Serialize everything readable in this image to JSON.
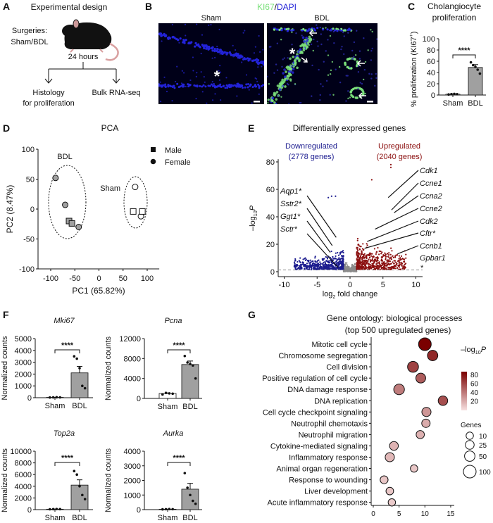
{
  "panel_letters": [
    "A",
    "B",
    "C",
    "D",
    "E",
    "F",
    "G"
  ],
  "experimental_design": {
    "title": "Experimental design",
    "surgeries": "Surgeries:",
    "groups": "Sham/BDL",
    "duration": "24 hours",
    "outcome_left_1": "Histology",
    "outcome_left_2": "for proliferation",
    "outcome_right": "Bulk RNA-seq"
  },
  "microscopy": {
    "stain_ki67": "KI67",
    "stain_sep": "/",
    "stain_dapi": "DAPI",
    "left_label": "Sham",
    "right_label": "BDL",
    "asterisk": "*",
    "colors": {
      "background": "#000018",
      "dapi": "#2323d8",
      "ki67": "#7be07b"
    }
  },
  "chart_data": [
    {
      "type": "bar",
      "title_lines": [
        "Cholangiocyte",
        "proliferation"
      ],
      "ylabel": "% proliferation (KI67",
      "ylabel_sup": "+",
      "ylabel_end": ")",
      "categories": [
        "Sham",
        "BDL"
      ],
      "values": [
        1.5,
        49
      ],
      "errors": [
        0.5,
        5
      ],
      "points": [
        [
          1,
          1.5,
          2,
          1.5
        ],
        [
          58,
          53,
          50,
          45,
          38
        ]
      ],
      "ylim": [
        0,
        100
      ],
      "yticks": [
        "0",
        "20",
        "40",
        "60",
        "80",
        "100"
      ],
      "significance": "****",
      "colors": [
        "#ffffff",
        "#a0a0a0"
      ]
    },
    {
      "type": "scatter",
      "title": "PCA",
      "xlabel": "PC1 (65.82%)",
      "ylabel": "PC2 (8.47%)",
      "xlim": [
        -125,
        125
      ],
      "ylim": [
        -100,
        100
      ],
      "xticks": [
        "-100",
        "-50",
        "0",
        "50",
        "100"
      ],
      "yticks": [
        "-100",
        "-50",
        "0",
        "50",
        "100"
      ],
      "legend": [
        {
          "label": "Male",
          "marker": "square"
        },
        {
          "label": "Female",
          "marker": "circle"
        }
      ],
      "legend_position": "top-right",
      "groups": [
        {
          "name": "BDL",
          "color": "#a0a0a0",
          "points": [
            {
              "x": -90,
              "y": 52,
              "sex": "Female"
            },
            {
              "x": -70,
              "y": 7,
              "sex": "Female"
            },
            {
              "x": -42,
              "y": -30,
              "sex": "Female"
            },
            {
              "x": -62,
              "y": -20,
              "sex": "Male"
            },
            {
              "x": -56,
              "y": -24,
              "sex": "Male"
            }
          ]
        },
        {
          "name": "Sham",
          "color": "#ffffff",
          "points": [
            {
              "x": 75,
              "y": 37,
              "sex": "Female"
            },
            {
              "x": 87,
              "y": -12,
              "sex": "Female"
            },
            {
              "x": 71,
              "y": -4,
              "sex": "Male"
            },
            {
              "x": 90,
              "y": -4,
              "sex": "Male"
            }
          ]
        }
      ]
    },
    {
      "type": "scatter",
      "title": "Differentially expressed genes",
      "xlabel_pre": "log",
      "xlabel_sub": "2",
      "xlabel_post": " fold change",
      "ylabel_pre": "–log",
      "ylabel_sub": "10",
      "ylabel_post": "P",
      "xlim": [
        -11,
        11
      ],
      "ylim": [
        0,
        82
      ],
      "xticks": [
        "-10",
        "-5",
        "0",
        "5",
        "10"
      ],
      "yticks": [
        "0",
        "20",
        "40",
        "60",
        "80"
      ],
      "threshold_neglog10p": 1.3,
      "fold_change_cutoff": 1,
      "down": {
        "label": "Downregulated",
        "count_label": "(2778 genes)",
        "count": 2778,
        "color": "#1c1c8f"
      },
      "up": {
        "label": "Upregulated",
        "count_label": "(2040 genes)",
        "count": 2040,
        "color": "#8b0f0f"
      },
      "ns_color": "#8c8c8c",
      "annotated_up": [
        {
          "gene": "Cdk1",
          "x": 5.8,
          "y": 54
        },
        {
          "gene": "Ccne1",
          "x": 6.3,
          "y": 45
        },
        {
          "gene": "Ccna2",
          "x": 6.7,
          "y": 43
        },
        {
          "gene": "Ccne2",
          "x": 3.8,
          "y": 31
        },
        {
          "gene": "Cdk2",
          "x": 2.6,
          "y": 22
        },
        {
          "gene": "Cftr*",
          "x": 2.2,
          "y": 17
        },
        {
          "gene": "Ccnb1",
          "x": 7.2,
          "y": 13
        },
        {
          "gene": "Gpbar1",
          "x": 10.6,
          "y": 1.5
        }
      ],
      "gpbar1_star": "*",
      "annotated_down": [
        {
          "gene": "Aqp1*",
          "x": -2.1,
          "y": 25
        },
        {
          "gene": "Sstr2*",
          "x": -2.7,
          "y": 19
        },
        {
          "gene": "Ggt1*",
          "x": -3.0,
          "y": 14
        },
        {
          "gene": "Sctr*",
          "x": -1.8,
          "y": 3
        }
      ]
    },
    {
      "type": "bar",
      "title": "Mki67",
      "ylabel": "Normalized counts",
      "categories": [
        "Sham",
        "BDL"
      ],
      "values": [
        30,
        2100
      ],
      "errors": [
        5,
        550
      ],
      "points": [
        [
          20,
          30,
          40,
          30
        ],
        [
          3500,
          3300,
          2500,
          1000,
          800
        ]
      ],
      "ylim": [
        0,
        5000
      ],
      "yticks": [
        "0",
        "1000",
        "2000",
        "3000",
        "4000",
        "5000"
      ],
      "significance": "****",
      "colors": [
        "#ffffff",
        "#a0a0a0"
      ]
    },
    {
      "type": "bar",
      "title": "Pcna",
      "ylabel": "Normalized counts",
      "categories": [
        "Sham",
        "BDL"
      ],
      "values": [
        1000,
        6800
      ],
      "errors": [
        100,
        700
      ],
      "points": [
        [
          800,
          1100,
          1000,
          950
        ],
        [
          8500,
          7200,
          6900,
          6600,
          4000
        ]
      ],
      "ylim": [
        0,
        12000
      ],
      "yticks": [
        "0",
        "4000",
        "8000",
        "12000"
      ],
      "significance": "****",
      "colors": [
        "#ffffff",
        "#a0a0a0"
      ]
    },
    {
      "type": "bar",
      "title": "Top2a",
      "ylabel": "Normalized counts",
      "categories": [
        "Sham",
        "BDL"
      ],
      "values": [
        80,
        4200
      ],
      "errors": [
        20,
        900
      ],
      "points": [
        [
          60,
          80,
          100,
          80
        ],
        [
          6600,
          6000,
          4000,
          2500,
          1800
        ]
      ],
      "ylim": [
        0,
        10000
      ],
      "yticks": [
        "0",
        "2000",
        "4000",
        "6000",
        "8000",
        "10000"
      ],
      "significance": "****",
      "colors": [
        "#ffffff",
        "#a0a0a0"
      ]
    },
    {
      "type": "bar",
      "title": "Aurka",
      "ylabel": "Normalized counts",
      "categories": [
        "Sham",
        "BDL"
      ],
      "values": [
        30,
        1400
      ],
      "errors": [
        5,
        400
      ],
      "points": [
        [
          20,
          30,
          40,
          30
        ],
        [
          2500,
          1500,
          1000,
          600,
          400
        ]
      ],
      "ylim": [
        0,
        4000
      ],
      "yticks": [
        "0",
        "1000",
        "2000",
        "3000",
        "4000"
      ],
      "significance": "****",
      "colors": [
        "#ffffff",
        "#a0a0a0"
      ]
    },
    {
      "type": "scatter",
      "title_lines": [
        "Gene ontology: biological processes",
        "(top 500 upregulated genes)"
      ],
      "xlim": [
        0,
        15.5
      ],
      "xticks": [
        "0",
        "5",
        "10",
        "15"
      ],
      "categories": [
        "Mitotic cell cycle",
        "Chromosome segregation",
        "Cell division",
        "Positive regulation of cell cycle",
        "DNA damage response",
        "DNA replication",
        "Cell cycle checkpoint signaling",
        "Neutrophil chemotaxis",
        "Neutrophil migration",
        "Cytokine-mediated signaling",
        "Inflammatory response",
        "Animal organ regeneration",
        "Response to wounding",
        "Liver development",
        "Acute inflammatory response"
      ],
      "x": [
        10,
        11.5,
        7.7,
        9.2,
        5,
        13.5,
        10.3,
        10.2,
        9.1,
        4,
        3.2,
        7.9,
        2.1,
        3.2,
        3.6
      ],
      "genes": [
        100,
        50,
        60,
        40,
        55,
        35,
        30,
        20,
        18,
        25,
        30,
        10,
        15,
        12,
        10
      ],
      "neglog10p": [
        85,
        70,
        60,
        50,
        38,
        55,
        28,
        20,
        18,
        17,
        15,
        10,
        10,
        10,
        8
      ],
      "color_legend": {
        "title_pre": "–log",
        "title_sub": "10",
        "title_post": "P",
        "ticks": [
          "80",
          "60",
          "40",
          "20"
        ],
        "low_color": "#f7e0e0",
        "high_color": "#7a0000",
        "range": [
          0,
          85
        ]
      },
      "size_legend": {
        "title": "Genes",
        "values": [
          "10",
          "25",
          "50",
          "100"
        ]
      },
      "legend_position": "right"
    }
  ]
}
